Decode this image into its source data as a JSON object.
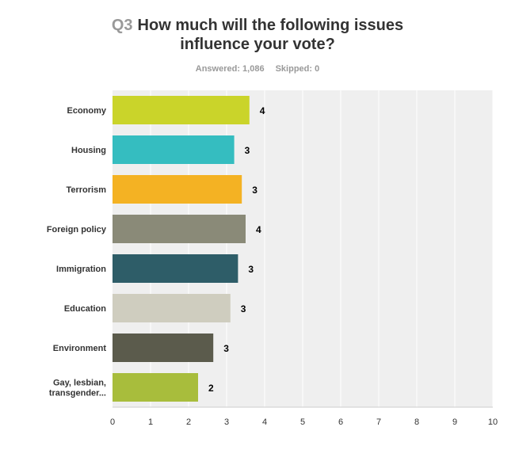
{
  "header": {
    "question_number": "Q3",
    "title_line1": "How much will the following issues",
    "title_line2": "influence your vote?",
    "answered": "Answered: 1,086",
    "skipped": "Skipped: 0"
  },
  "chart_data": {
    "type": "bar",
    "orientation": "horizontal",
    "categories": [
      "Economy",
      "Housing",
      "Terrorism",
      "Foreign policy",
      "Immigration",
      "Education",
      "Environment",
      "Gay, lesbian, transgender..."
    ],
    "category_lines": [
      [
        "Economy"
      ],
      [
        "Housing"
      ],
      [
        "Terrorism"
      ],
      [
        "Foreign policy"
      ],
      [
        "Immigration"
      ],
      [
        "Education"
      ],
      [
        "Environment"
      ],
      [
        "Gay, lesbian,",
        "transgender..."
      ]
    ],
    "values": [
      3.6,
      3.2,
      3.4,
      3.5,
      3.3,
      3.1,
      2.65,
      2.25
    ],
    "data_labels": [
      "4",
      "3",
      "3",
      "4",
      "3",
      "3",
      "3",
      "2"
    ],
    "colors": [
      "#cad42a",
      "#35bdc0",
      "#f4b223",
      "#8a8a78",
      "#2e5d68",
      "#cfcdbf",
      "#5b5b4c",
      "#a8bd3c"
    ],
    "xlim": [
      0,
      10
    ],
    "x_ticks": [
      "0",
      "1",
      "2",
      "3",
      "4",
      "5",
      "6",
      "7",
      "8",
      "9",
      "10"
    ],
    "grid": true
  }
}
